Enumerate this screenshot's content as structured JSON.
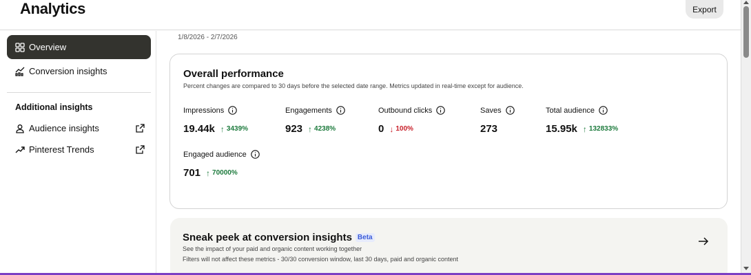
{
  "header": {
    "title": "Analytics",
    "export_label": "Export"
  },
  "sidebar": {
    "items": [
      {
        "label": "Overview",
        "icon": "grid-icon"
      },
      {
        "label": "Conversion insights",
        "icon": "chart-cart-icon"
      }
    ],
    "section_title": "Additional insights",
    "sub_items": [
      {
        "label": "Audience insights",
        "icon": "person-icon"
      },
      {
        "label": "Pinterest Trends",
        "icon": "trend-icon"
      }
    ]
  },
  "main": {
    "date_range": "1/8/2026 - 2/7/2026",
    "performance": {
      "title": "Overall performance",
      "subtitle": "Percent changes are compared to 30 days before the selected date range. Metrics updated in real-time except for audience.",
      "metrics": [
        {
          "label": "Impressions",
          "value": "19.44k",
          "change": "3439%",
          "direction": "up"
        },
        {
          "label": "Engagements",
          "value": "923",
          "change": "4238%",
          "direction": "up"
        },
        {
          "label": "Outbound clicks",
          "value": "0",
          "change": "100%",
          "direction": "down"
        },
        {
          "label": "Saves",
          "value": "273",
          "change": "",
          "direction": "none"
        },
        {
          "label": "Total audience",
          "value": "15.95k",
          "change": "132833%",
          "direction": "up"
        },
        {
          "label": "Engaged audience",
          "value": "701",
          "change": "70000%",
          "direction": "up"
        }
      ]
    },
    "peek": {
      "title": "Sneak peek at conversion insights",
      "badge": "Beta",
      "line1": "See the impact of your paid and organic content working together",
      "line2": "Filters will not affect these metrics - 30/30 conversion window, last 30 days, paid and organic content"
    }
  },
  "colors": {
    "up": "#1c7a3c",
    "down": "#c8202a",
    "active_nav": "#33332e",
    "frame": "#7b3fc4",
    "beta": "#3b5bd8"
  }
}
